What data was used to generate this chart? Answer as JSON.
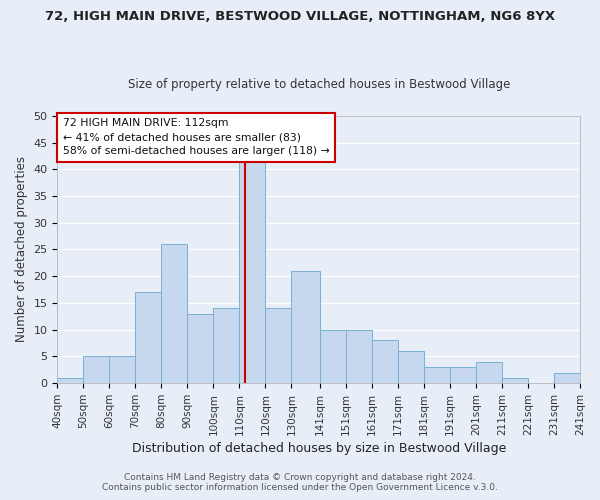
{
  "title": "72, HIGH MAIN DRIVE, BESTWOOD VILLAGE, NOTTINGHAM, NG6 8YX",
  "subtitle": "Size of property relative to detached houses in Bestwood Village",
  "xlabel": "Distribution of detached houses by size in Bestwood Village",
  "ylabel": "Number of detached properties",
  "bar_color": "#c5d8ed",
  "bar_edge_color": "#7aafd4",
  "background_color": "#e8eef7",
  "grid_color": "#ffffff",
  "annotation_line_color": "#cc0000",
  "annotation_box_color": "#cc0000",
  "bin_edges": [
    40,
    50,
    60,
    70,
    80,
    90,
    100,
    110,
    120,
    130,
    141,
    151,
    161,
    171,
    181,
    191,
    201,
    211,
    221,
    231,
    241
  ],
  "bar_heights": [
    1,
    5,
    5,
    17,
    26,
    13,
    14,
    42,
    14,
    21,
    10,
    10,
    8,
    6,
    3,
    3,
    4,
    1,
    0,
    2
  ],
  "bin_labels": [
    "40sqm",
    "50sqm",
    "60sqm",
    "70sqm",
    "80sqm",
    "90sqm",
    "100sqm",
    "110sqm",
    "120sqm",
    "130sqm",
    "141sqm",
    "151sqm",
    "161sqm",
    "171sqm",
    "181sqm",
    "191sqm",
    "201sqm",
    "211sqm",
    "221sqm",
    "231sqm",
    "241sqm"
  ],
  "property_size": 112,
  "annotation_title": "72 HIGH MAIN DRIVE: 112sqm",
  "annotation_line1": "← 41% of detached houses are smaller (83)",
  "annotation_line2": "58% of semi-detached houses are larger (118) →",
  "ylim": [
    0,
    50
  ],
  "yticks": [
    0,
    5,
    10,
    15,
    20,
    25,
    30,
    35,
    40,
    45,
    50
  ],
  "footer1": "Contains HM Land Registry data © Crown copyright and database right 2024.",
  "footer2": "Contains public sector information licensed under the Open Government Licence v.3.0."
}
